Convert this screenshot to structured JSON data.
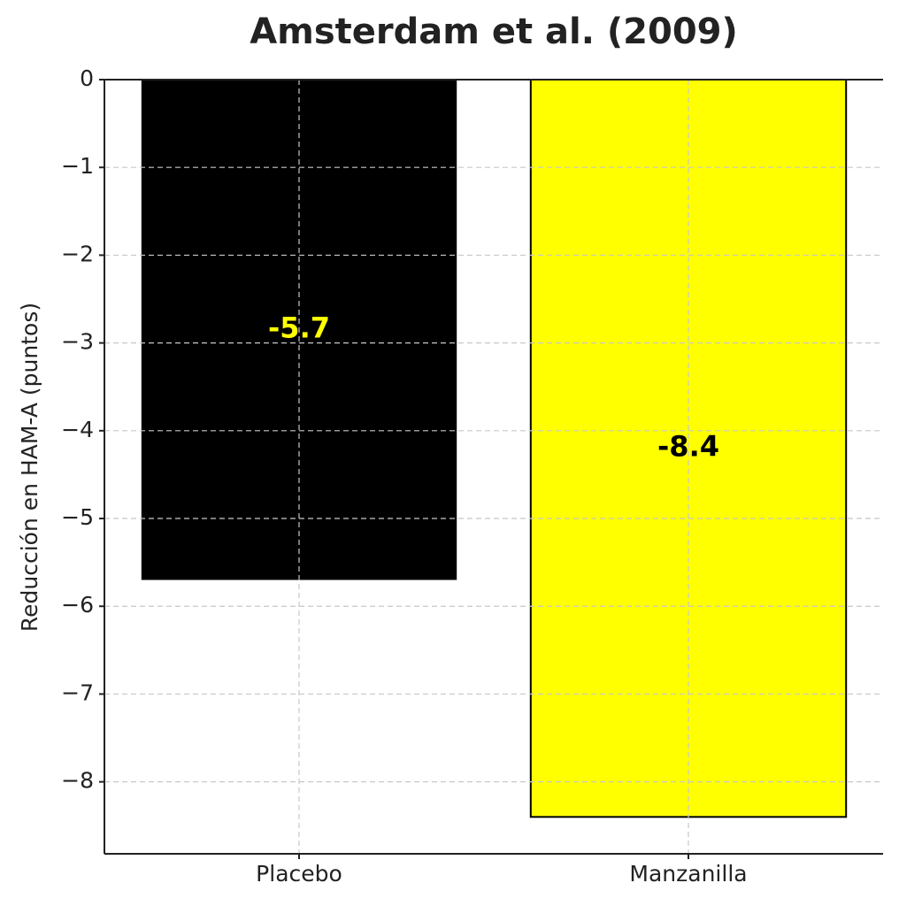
{
  "chart_data": {
    "type": "bar",
    "title": "Amsterdam et al. (2009)",
    "ylabel": "Reducción en HAM-A (puntos)",
    "categories": [
      "Placebo",
      "Manzanilla"
    ],
    "values": [
      -5.7,
      -8.4
    ],
    "colors": [
      "#000000",
      "#ffff00"
    ],
    "label_colors": [
      "#ffff00",
      "#000000"
    ],
    "ylim": [
      -8.82,
      0
    ],
    "yticks": [
      0,
      {
        "value": -1,
        "label": "−1"
      },
      {
        "value": -2,
        "label": "−2"
      },
      {
        "value": -3,
        "label": "−3"
      },
      {
        "value": -4,
        "label": "−4"
      },
      {
        "value": -5,
        "label": "−5"
      },
      {
        "value": -6,
        "label": "−6"
      },
      {
        "value": -7,
        "label": "−7"
      },
      {
        "value": -8,
        "label": "−8"
      }
    ],
    "grid": true
  }
}
